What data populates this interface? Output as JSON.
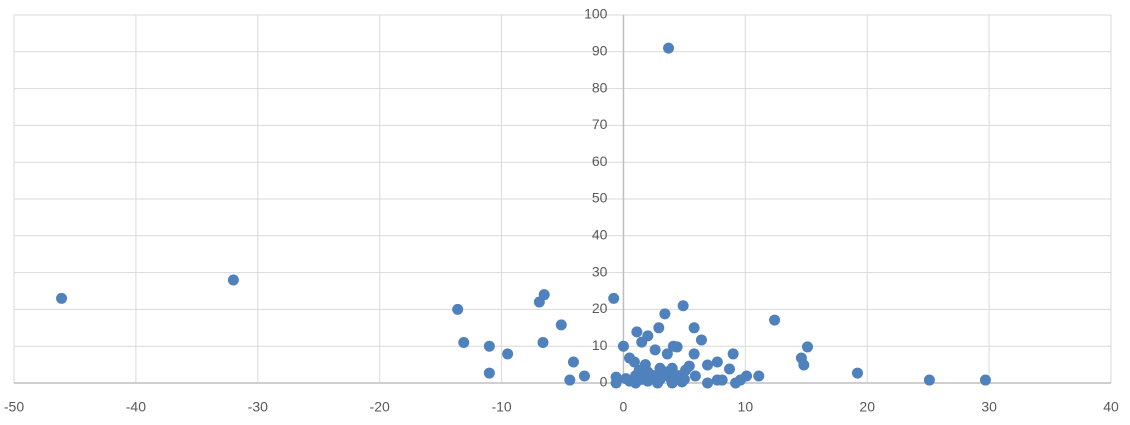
{
  "chart_data": {
    "type": "scatter",
    "series": [
      {
        "color": "#4f81bd",
        "x": [
          -46.1,
          -32,
          -13.6,
          -13.1,
          -11,
          -11,
          -9.5,
          -6.9,
          -6.5,
          -6.6,
          -5.1,
          -4.1,
          -4.4,
          -3.2,
          -0.8,
          0,
          -0.6,
          -0.6,
          3.7,
          4.9,
          3.4,
          2.9,
          5.8,
          6.4,
          1.1,
          2,
          1.5,
          2.6,
          4.4,
          4.1,
          3.6,
          5.8,
          0.5,
          0.9,
          6.9,
          7.7,
          9,
          8.7,
          5.4,
          5.1,
          12.4,
          14.6,
          14.8,
          15.1,
          19.2,
          25.1,
          29.7,
          11.1,
          10.1,
          9.6,
          9.2,
          8.1,
          7.7,
          6.9,
          5.9,
          1,
          1.5,
          2,
          2.5,
          3,
          3.5,
          4,
          4.5,
          2,
          1,
          3,
          0.5,
          4,
          2.8,
          3.8,
          1.8,
          5,
          0.2,
          2.2,
          4.8,
          3.2,
          1.3
        ],
        "values": [
          23,
          28,
          20,
          11,
          10,
          2.7,
          7.9,
          22,
          24,
          11,
          15.8,
          5.7,
          0.8,
          1.9,
          23,
          10,
          1.6,
          0,
          91,
          21,
          18.8,
          15,
          15,
          11.7,
          13.9,
          12.8,
          11.1,
          9,
          9.8,
          10,
          7.9,
          7.9,
          6.8,
          5.7,
          4.9,
          5.7,
          7.9,
          3.8,
          4.6,
          3.5,
          17.1,
          6.8,
          4.9,
          9.8,
          2.7,
          0.8,
          0.8,
          1.9,
          1.9,
          0.8,
          0,
          0.8,
          0.8,
          0,
          1.9,
          0,
          1,
          0.5,
          2,
          1,
          3,
          0,
          2,
          3,
          2,
          4,
          0.5,
          4,
          0,
          1.5,
          5,
          1,
          1.2,
          1.5,
          0.3,
          2.5,
          3.5
        ]
      }
    ],
    "xlim": [
      -50,
      40
    ],
    "xticks": [
      -50,
      -40,
      -30,
      -20,
      -10,
      0,
      10,
      20,
      30,
      40
    ],
    "ylim": [
      0,
      100
    ],
    "yticks": [
      0,
      10,
      20,
      30,
      40,
      50,
      60,
      70,
      80,
      90,
      100
    ],
    "grid": true
  }
}
